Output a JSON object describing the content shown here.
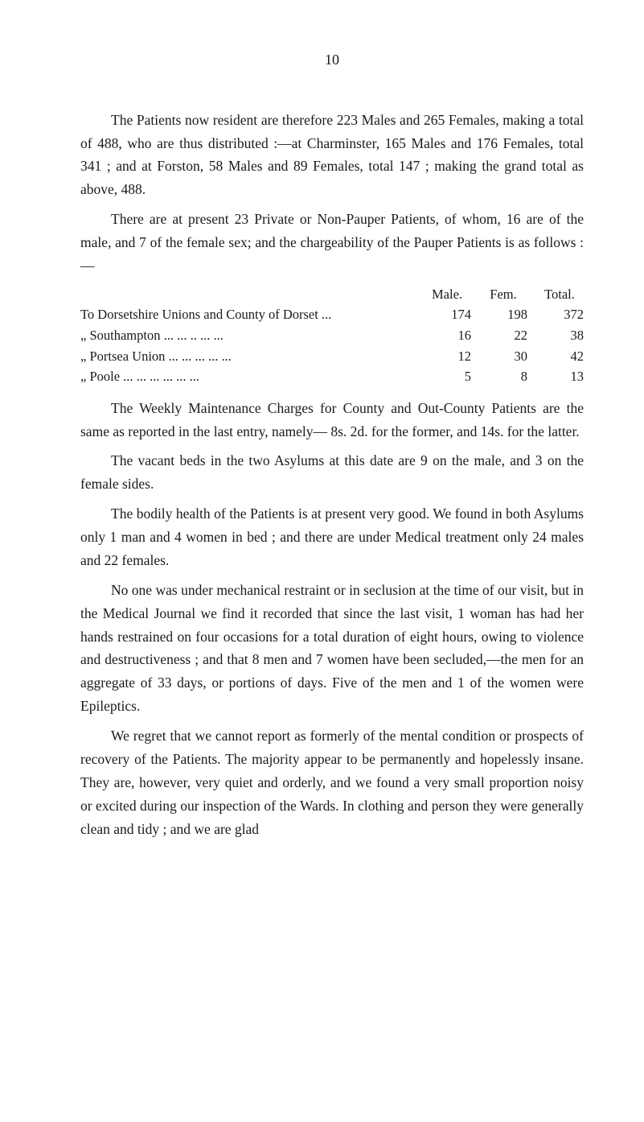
{
  "pageNumber": "10",
  "para1": "The Patients now resident are therefore 223 Males and 265 Females, making a total of 488, who are thus distributed :—at Charminster, 165 Males and 176 Females, total 341 ; and at Forston, 58 Males and 89 Females, total 147 ; making the grand total as above, 488.",
  "para2": "There are at present 23 Private or Non-Pauper Patients, of whom, 16 are of the male, and 7 of the female sex; and the chargeability of the Pauper Patients is as follows :—",
  "table": {
    "headers": [
      "Male.",
      "Fem.",
      "Total."
    ],
    "rows": [
      {
        "label": "To Dorsetshire Unions and County of Dorset ...",
        "male": "174",
        "fem": "198",
        "total": "372"
      },
      {
        "label": "„ Southampton ...   ...   ..   ...   ...",
        "male": "16",
        "fem": "22",
        "total": "38"
      },
      {
        "label": "„ Portsea Union ...   ...   ...   ...   ...",
        "male": "12",
        "fem": "30",
        "total": "42"
      },
      {
        "label": "„ Poole   ...   ...   ...   ...   ...   ...",
        "male": "5",
        "fem": "8",
        "total": "13"
      }
    ]
  },
  "para3": "The Weekly Maintenance Charges for County and Out-County Patients are the same as reported in the last entry, namely— 8s. 2d. for the former, and 14s. for the latter.",
  "para4": "The vacant beds in the two Asylums at this date are 9 on the male, and 3 on the female sides.",
  "para5": "The bodily health of the Patients is at present very good. We found in both Asylums only 1 man and 4 women in bed ; and there are under Medical treatment only 24 males and 22 females.",
  "para6": "No one was under mechanical restraint or in seclusion at the time of our visit, but in the Medical Journal we find it recorded that since the last visit, 1 woman has had her hands restrained on four occasions for a total duration of eight hours, owing to violence and destructiveness ; and that 8 men and 7 women have been secluded,—the men for an aggregate of 33 days, or portions of days. Five of the men and 1 of the women were Epileptics.",
  "para7": "We regret that we cannot report as formerly of the mental condition or prospects of recovery of the Patients. The majority appear to be permanently and hopelessly insane. They are, however, very quiet and orderly, and we found a very small proportion noisy or excited during our inspection of the Wards. In clothing and person they were generally clean and tidy ; and we are glad"
}
